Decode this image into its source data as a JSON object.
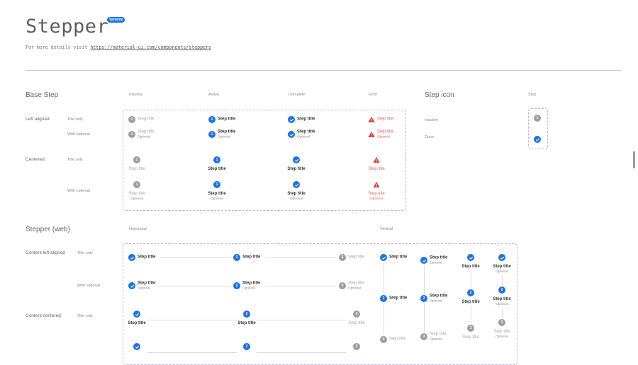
{
  "header": {
    "title": "Stepper",
    "badge": "Variants",
    "subtitle_prefix": "For more details visit ",
    "subtitle_link": "https://material-ui.com/components/steppers"
  },
  "colors": {
    "accent": "#1a73e8",
    "inactive": "#9e9e9e",
    "error": "#e53935",
    "border": "#b9b6e0"
  },
  "base_step": {
    "title": "Base Step",
    "columns": [
      "Inactive",
      "Active",
      "Complete",
      "Error"
    ],
    "groups": [
      "Left aligned",
      "Centered"
    ],
    "variants": [
      "Title only",
      "With optional",
      "Title only",
      "With optional"
    ],
    "states": [
      "inactive",
      "active",
      "complete",
      "error"
    ],
    "number": "1",
    "step_title": "Step title",
    "optional": "Optional"
  },
  "step_icon": {
    "title": "Step icon",
    "column": "Step",
    "rows": [
      {
        "label": "Inactive",
        "state": "inactive",
        "number": "1"
      },
      {
        "label": "Done",
        "state": "complete"
      }
    ]
  },
  "stepper_web": {
    "title": "Stepper (web)",
    "horizontal_label": "Horizontal",
    "vertical_label": "Vertical",
    "groups": [
      "Content left aligned",
      "Content centered"
    ],
    "variants": [
      "Title only",
      "With optional",
      "Title only"
    ],
    "steps": [
      {
        "state": "complete",
        "number": "1"
      },
      {
        "state": "active",
        "number": "2"
      },
      {
        "state": "inactive",
        "number": "3"
      }
    ],
    "step_title": "Step title",
    "optional": "Optional"
  }
}
